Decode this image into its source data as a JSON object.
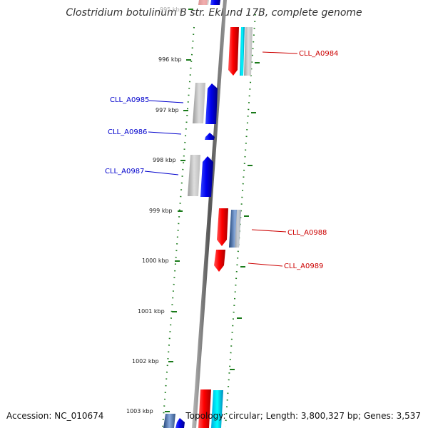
{
  "title": "Clostridium botulinum B str. Eklund 17B, complete genome",
  "accession": "Accession: NC_010674",
  "summary": "Topology: circular; Length: 3,800,327 bp; Genes: 3,537",
  "ticks": [
    "995 kbp",
    "996 kbp",
    "997 kbp",
    "998 kbp",
    "999 kbp",
    "1000 kbp",
    "1001 kbp",
    "1002 kbp",
    "1003 kbp"
  ],
  "genes_forward": [
    {
      "label": "CLL_A0985",
      "color": "#0000cc"
    },
    {
      "label": "CLL_A0986",
      "color": "#0000cc"
    },
    {
      "label": "CLL_A0987",
      "color": "#0000cc"
    }
  ],
  "genes_reverse": [
    {
      "label": "CLL_A0984",
      "color": "#cc0000"
    },
    {
      "label": "CLL_A0988",
      "color": "#cc0000"
    },
    {
      "label": "CLL_A0989",
      "color": "#cc0000"
    }
  ],
  "colors": {
    "forward": "#0000ee",
    "reverse": "#ee0000",
    "cyan": "#00ccff",
    "grey": "#b0b0b0",
    "steel": "#4477aa",
    "tick": "#1a7a1a",
    "backbone": "#777777"
  }
}
